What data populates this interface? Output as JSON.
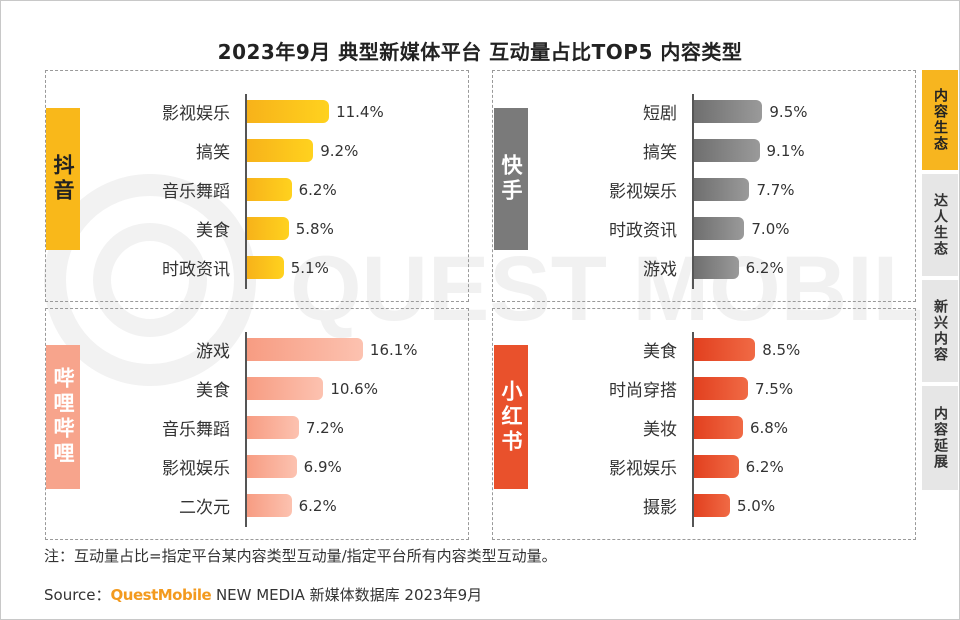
{
  "title": "2023年9月 典型新媒体平台 互动量占比TOP5 内容类型",
  "nav": [
    {
      "label": "内容生态",
      "active": true
    },
    {
      "label": "达人生态",
      "active": false
    },
    {
      "label": "新兴内容",
      "active": false
    },
    {
      "label": "内容延展",
      "active": false
    }
  ],
  "note": "注：互动量占比=指定平台某内容类型互动量/指定平台所有内容类型互动量。",
  "source": {
    "prefix": "Source：",
    "brand": "QuestMobile",
    "suffix": " NEW MEDIA 新媒体数据库 2023年9月"
  },
  "watermark": "QUEST MOBILE",
  "colors": {
    "douyin": "#f9b81a",
    "kuaishou": "#7a7a7a",
    "bilibili": "#f7a48c",
    "xiaohongshu": "#e9512c"
  },
  "chart_data": [
    {
      "type": "bar",
      "platform": "抖音",
      "key": "douyin",
      "unit": "%",
      "categories": [
        "影视娱乐",
        "搞笑",
        "音乐舞蹈",
        "美食",
        "时政资讯"
      ],
      "values": [
        11.4,
        9.2,
        6.2,
        5.8,
        5.1
      ]
    },
    {
      "type": "bar",
      "platform": "快手",
      "key": "kuaishou",
      "unit": "%",
      "categories": [
        "短剧",
        "搞笑",
        "影视娱乐",
        "时政资讯",
        "游戏"
      ],
      "values": [
        9.5,
        9.1,
        7.7,
        7.0,
        6.2
      ]
    },
    {
      "type": "bar",
      "platform": "哔哩哔哩",
      "key": "bilibili",
      "unit": "%",
      "categories": [
        "游戏",
        "美食",
        "音乐舞蹈",
        "影视娱乐",
        "二次元"
      ],
      "values": [
        16.1,
        10.6,
        7.2,
        6.9,
        6.2
      ]
    },
    {
      "type": "bar",
      "platform": "小红书",
      "key": "xiaohongshu",
      "unit": "%",
      "categories": [
        "美食",
        "时尚穿搭",
        "美妆",
        "影视娱乐",
        "摄影"
      ],
      "values": [
        8.5,
        7.5,
        6.8,
        6.2,
        5.0
      ]
    }
  ]
}
